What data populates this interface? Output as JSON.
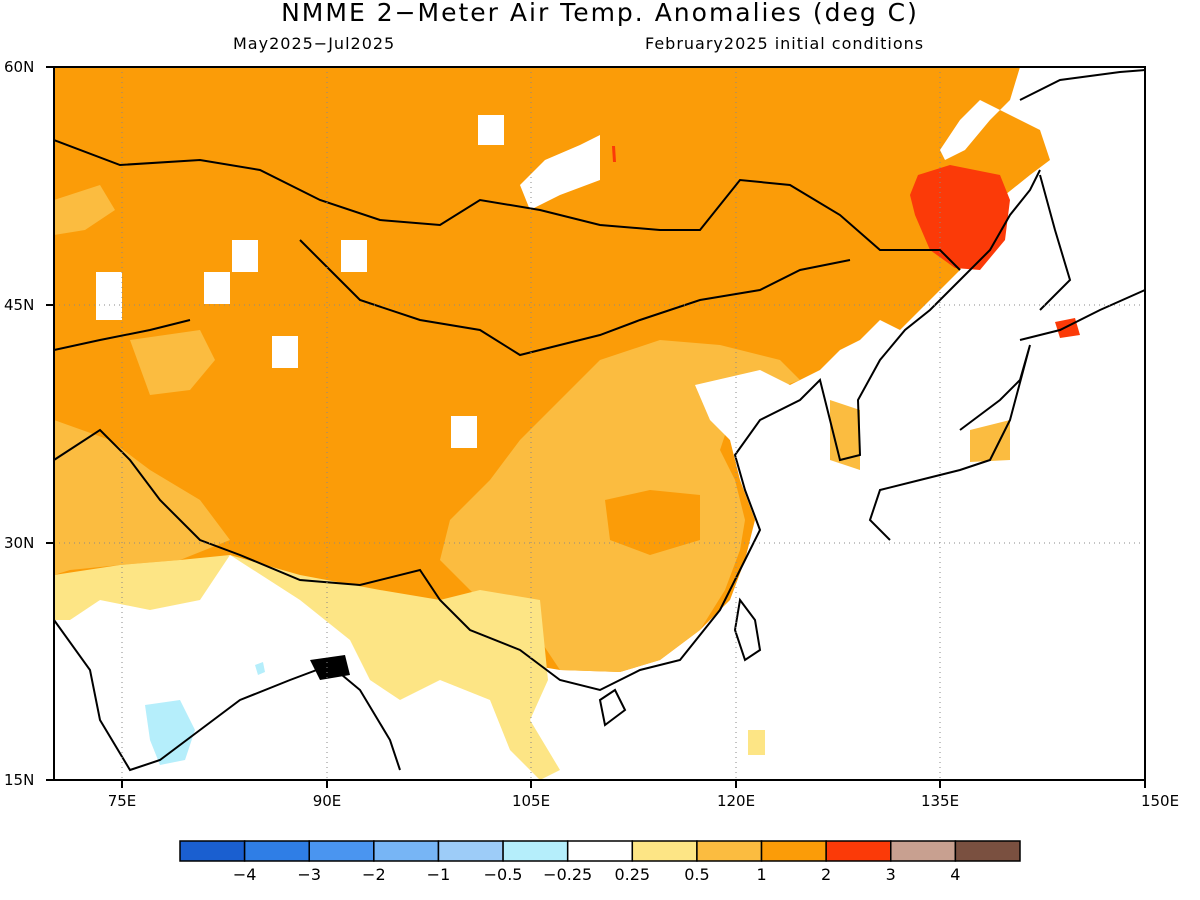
{
  "title": "NMME 2−Meter Air Temp. Anomalies (deg C)",
  "subtitle_left": "May2025−Jul2025",
  "subtitle_right": "February2025 initial conditions",
  "map": {
    "type": "map",
    "region": "East Asia",
    "lat_range": [
      15,
      60
    ],
    "lon_range": [
      70,
      150
    ],
    "lat_labels": [
      "60N",
      "45N",
      "30N",
      "15N"
    ],
    "lon_labels": [
      "75E",
      "90E",
      "105E",
      "120E",
      "135E",
      "150E"
    ],
    "grid": "dotted"
  },
  "colorbar": {
    "labels": [
      "−4",
      "−3",
      "−2",
      "−1",
      "−0.5",
      "−0.25",
      "0.25",
      "0.5",
      "1",
      "2",
      "3",
      "4"
    ],
    "colors": [
      "#1a5fd0",
      "#2f7ee6",
      "#4a95f0",
      "#77b5f5",
      "#9dccf8",
      "#b5eefb",
      "#ffffff",
      "#fde585",
      "#fbbc40",
      "#fb9c08",
      "#fb3a08",
      "#c8a090",
      "#7a5040"
    ]
  }
}
